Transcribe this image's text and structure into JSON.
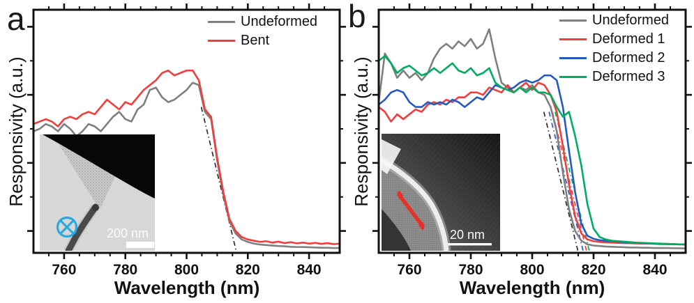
{
  "figure": {
    "background": "#ffffff",
    "axis_color": "#111111",
    "description": "Two-panel spectral responsivity figure with TEM insets"
  },
  "chart_data": [
    {
      "type": "line",
      "panel_label": "a",
      "title": "",
      "xlabel": "Wavelength (nm)",
      "ylabel": "Responsivity (a.u.)",
      "xlim": [
        750,
        850
      ],
      "ylim": [
        0,
        100
      ],
      "xticks": [
        760,
        780,
        800,
        820,
        840
      ],
      "x_minor_step": 5,
      "grid": false,
      "legend_position": "top-right",
      "x": [
        750,
        752,
        754,
        756,
        758,
        760,
        762,
        764,
        766,
        768,
        770,
        772,
        774,
        776,
        778,
        780,
        782,
        784,
        786,
        788,
        790,
        792,
        794,
        796,
        798,
        800,
        802,
        804,
        806,
        808,
        810,
        812,
        814,
        816,
        818,
        820,
        822,
        824,
        826,
        828,
        830,
        832,
        834,
        836,
        838,
        840,
        842,
        844,
        846,
        848,
        850
      ],
      "series": [
        {
          "name": "Undeformed",
          "color": "#7f7f7f",
          "values": [
            50,
            51,
            53,
            52,
            50,
            53,
            51,
            48,
            50,
            53,
            52,
            50,
            53,
            56,
            58,
            55,
            54,
            59,
            61,
            67,
            68,
            64,
            62,
            63,
            65,
            67,
            70,
            69,
            58,
            55,
            38,
            24,
            13,
            8,
            5.5,
            4.5,
            3.8,
            3.4,
            3.2,
            3,
            2.8,
            2.7,
            2.5,
            2.4,
            2.4,
            2.3,
            2.2,
            2.1,
            2.1,
            2,
            2
          ]
        },
        {
          "name": "Bent",
          "color": "#f23d3d",
          "values": [
            53,
            54,
            55,
            54,
            52,
            55,
            56,
            55,
            57,
            58,
            57,
            60,
            63,
            61,
            59,
            62,
            61,
            64,
            67,
            69,
            71,
            74,
            75,
            73,
            74,
            75,
            75,
            71,
            59,
            56,
            39,
            25,
            14,
            9,
            6.5,
            5.5,
            5,
            4.5,
            4.8,
            4.2,
            4.6,
            4,
            4.4,
            3.9,
            4.2,
            3.8,
            4.1,
            3.7,
            4,
            3.6,
            3.8
          ]
        }
      ],
      "cutoff_lines": [
        {
          "color": "#2b2b2b",
          "x1": 804.8,
          "y1": 60,
          "x2": 816.3,
          "y2": 0.3
        }
      ],
      "inset": {
        "description": "TEM image of bent nanowire",
        "scale_bar_label": "200 nm",
        "annotation": "circled-x symbol",
        "annotation_color": "#2aa9e0"
      }
    },
    {
      "type": "line",
      "panel_label": "b",
      "title": "",
      "xlabel": "Wavelength (nm)",
      "ylabel": "Responsivity (a.u.)",
      "xlim": [
        750,
        850
      ],
      "ylim": [
        0,
        100
      ],
      "xticks": [
        760,
        780,
        800,
        820,
        840
      ],
      "x_minor_step": 5,
      "grid": false,
      "legend_position": "top-right",
      "x": [
        750,
        752,
        754,
        756,
        758,
        760,
        762,
        764,
        766,
        768,
        770,
        772,
        774,
        776,
        778,
        780,
        782,
        784,
        786,
        788,
        790,
        792,
        794,
        796,
        798,
        800,
        802,
        804,
        806,
        808,
        810,
        812,
        814,
        816,
        818,
        820,
        822,
        824,
        826,
        828,
        830,
        832,
        834,
        836,
        838,
        840,
        842,
        844,
        846,
        848,
        850
      ],
      "series": [
        {
          "name": "Undeformed",
          "color": "#7f7f7f",
          "values": [
            62,
            82,
            78,
            72,
            75,
            72,
            74,
            71,
            74,
            80,
            84,
            86,
            84,
            87,
            85,
            88,
            84,
            86,
            92,
            80,
            70,
            68,
            66,
            68,
            67,
            69,
            66,
            65,
            60,
            50,
            33,
            18,
            9,
            5,
            3.5,
            3,
            2.8,
            2.6,
            2.5,
            2.4,
            2.3,
            2.2,
            2.2,
            2.1,
            2.1,
            2,
            2,
            2,
            1.9,
            1.9,
            1.8
          ]
        },
        {
          "name": "Deformed 1",
          "color": "#f23d3d",
          "values": [
            60,
            58,
            54,
            57,
            55,
            57,
            59,
            58,
            61,
            62,
            61,
            63,
            62,
            64,
            64,
            66,
            66,
            65,
            68,
            67,
            66,
            69,
            66,
            68,
            70,
            67,
            70,
            69,
            65,
            58,
            44,
            28,
            15,
            8,
            5.5,
            4.8,
            4.5,
            4.3,
            4.2,
            4.1,
            4,
            4,
            3.9,
            3.8,
            3.8,
            3.7,
            3.6,
            3.6,
            3.5,
            3.5,
            3.4
          ]
        },
        {
          "name": "Deformed 2",
          "color": "#2458c4",
          "values": [
            61,
            63,
            66,
            67,
            66,
            62,
            60,
            60,
            62,
            61,
            62,
            61,
            63,
            62,
            60,
            62,
            64,
            63,
            66,
            69,
            68,
            67,
            68,
            70,
            71,
            70,
            71,
            73,
            73,
            71,
            60,
            42,
            25,
            12,
            7,
            5.8,
            5.2,
            5,
            4.8,
            4.6,
            4.4,
            4.2,
            4.1,
            4,
            3.9,
            3.8,
            3.7,
            3.6,
            3.6,
            3.5,
            3.5
          ]
        },
        {
          "name": "Deformed 3",
          "color": "#00ad5f",
          "values": [
            79,
            81,
            78,
            74,
            76,
            77,
            75,
            73,
            74,
            76,
            74,
            76,
            78,
            75,
            74,
            76,
            73,
            74,
            76,
            70,
            68,
            67,
            66,
            68,
            66,
            68,
            66,
            66,
            65,
            60,
            56,
            58,
            48,
            36,
            20,
            10,
            6.5,
            5.5,
            5,
            4.8,
            4.6,
            4.4,
            4.2,
            4.1,
            4,
            3.9,
            3.8,
            3.7,
            3.6,
            3.5,
            3.5
          ]
        }
      ],
      "cutoff_lines": [
        {
          "color": "#2b2b2b",
          "x1": 803.8,
          "y1": 58,
          "x2": 815.0,
          "y2": 0.3
        },
        {
          "color": "#2458c4",
          "x1": 805.5,
          "y1": 58,
          "x2": 816.7,
          "y2": 0.3
        },
        {
          "color": "#f23d3d",
          "x1": 806.6,
          "y1": 58,
          "x2": 817.8,
          "y2": 0.3
        },
        {
          "color": "#00ad5f",
          "x1": 807.5,
          "y1": 58,
          "x2": 818.7,
          "y2": 0.3
        }
      ],
      "inset": {
        "description": "HRTEM image of deformed nanowire surface",
        "scale_bar_label": "20 nm",
        "annotation": "red double-headed arrow",
        "annotation_color": "#e63028"
      }
    }
  ]
}
